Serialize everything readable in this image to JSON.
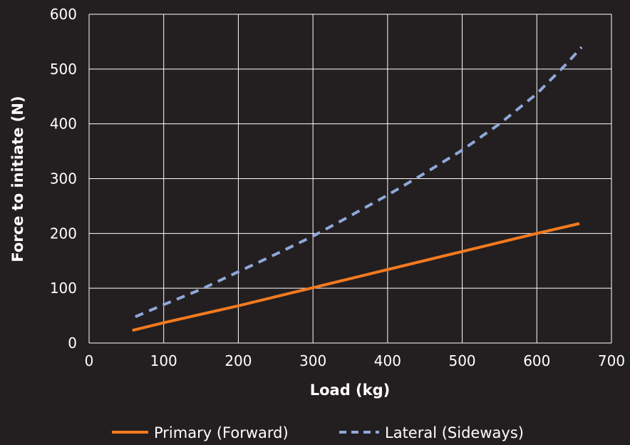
{
  "chart_data": {
    "type": "line",
    "title": "",
    "xlabel": "Load (kg)",
    "ylabel": "Force to initiate (N)",
    "xlim": [
      0,
      700
    ],
    "ylim": [
      0,
      600
    ],
    "x_ticks": [
      0,
      100,
      200,
      300,
      400,
      500,
      600,
      700
    ],
    "y_ticks": [
      0,
      100,
      200,
      300,
      400,
      500,
      600
    ],
    "grid": true,
    "legend_position": "bottom",
    "series": [
      {
        "name": "Primary (Forward)",
        "color": "#f47a1f",
        "style": "solid",
        "x": [
          58,
          100,
          200,
          300,
          400,
          500,
          600,
          657
        ],
        "y": [
          23,
          37,
          68,
          101,
          134,
          167,
          200,
          218
        ]
      },
      {
        "name": "Lateral (Sideways)",
        "color": "#8fa8d8",
        "style": "dashed",
        "x": [
          62,
          100,
          150,
          200,
          250,
          300,
          350,
          400,
          450,
          500,
          550,
          600,
          640,
          660
        ],
        "y": [
          48,
          70,
          98,
          130,
          162,
          195,
          232,
          270,
          310,
          352,
          400,
          455,
          510,
          540
        ]
      }
    ]
  }
}
